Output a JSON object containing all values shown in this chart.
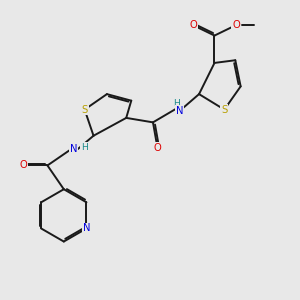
{
  "bg_color": "#e8e8e8",
  "bond_color": "#1a1a1a",
  "S_color": "#b8a000",
  "N_color": "#0000dd",
  "O_color": "#dd0000",
  "H_color": "#1a8a8a",
  "lw": 1.4,
  "dbo": 0.055,
  "fs": 7.2,
  "figsize": [
    3.0,
    3.0
  ],
  "dpi": 100,
  "xlim": [
    0,
    10
  ],
  "ylim": [
    0,
    10
  ]
}
